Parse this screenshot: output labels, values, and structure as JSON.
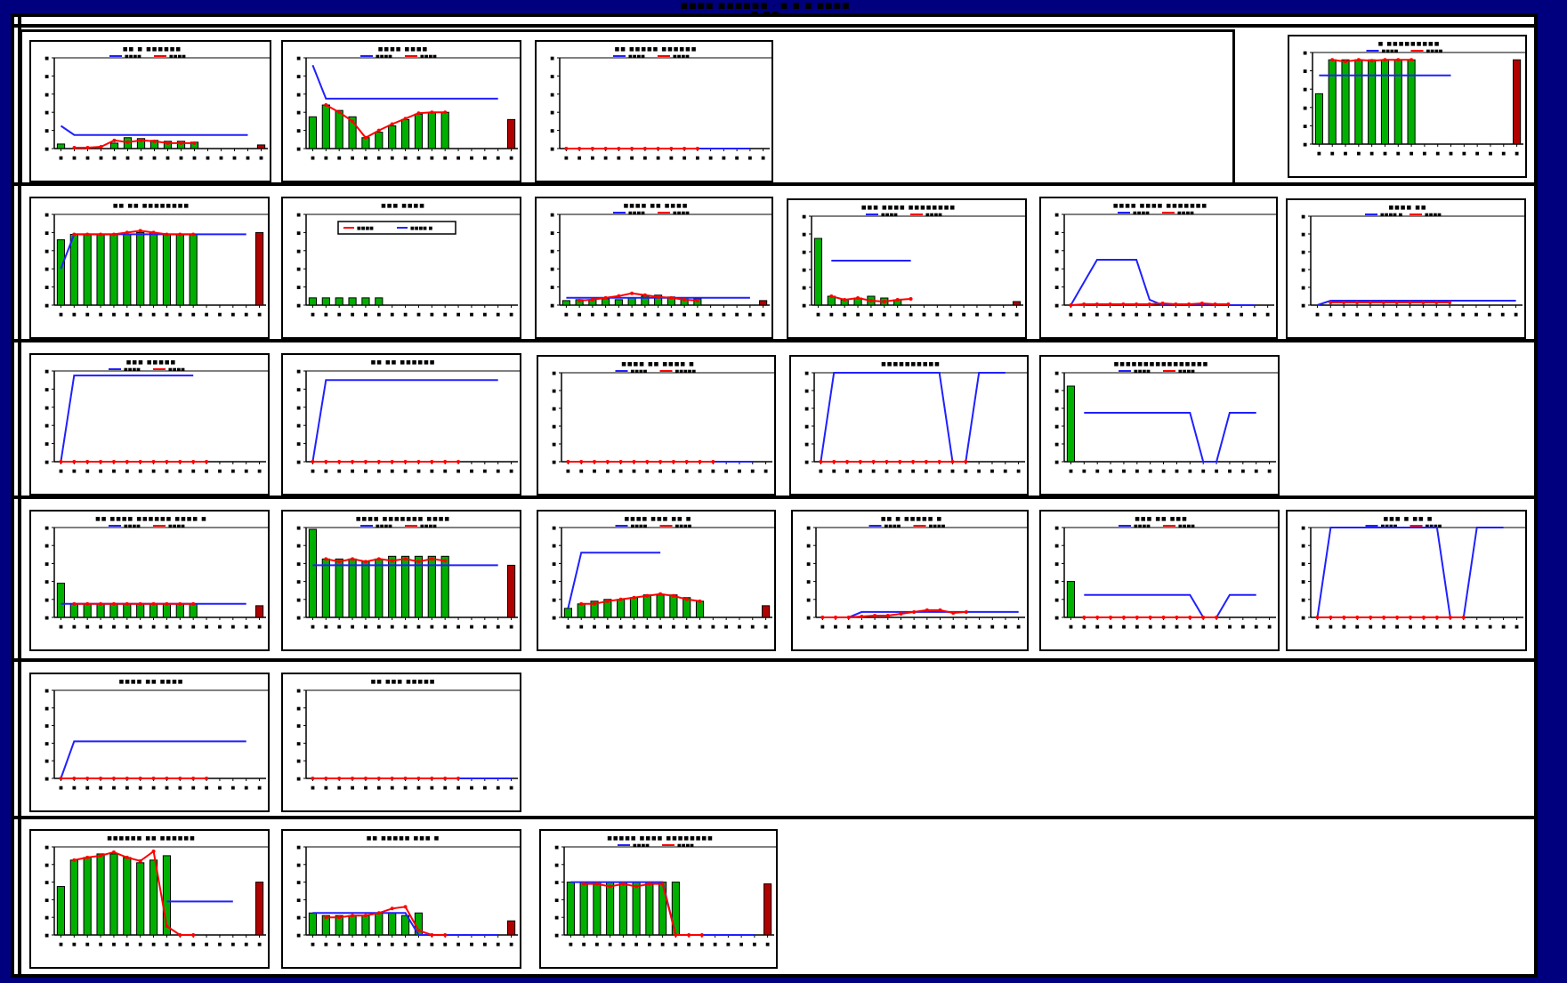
{
  "page": {
    "title": "■■■■ ■■■■■■ - ■ ■ ■ ■■■■",
    "subtitle": "■ ■■",
    "colors": {
      "background": "#00007e",
      "sheet": "#ffffff",
      "target_line": "#2020ff",
      "actual_line": "#ff0000",
      "bar": "#00b000",
      "ytd_bar": "#b00000"
    }
  },
  "chart_data": [
    {
      "type": "bar",
      "title": "■■ ■ ■■■■■■",
      "legend": [
        "■■■■",
        "■■■■"
      ],
      "values": [
        0.05,
        0,
        0,
        0,
        0.06,
        0.12,
        0.11,
        0.09,
        0.08,
        0.08,
        0.07,
        0,
        0,
        0,
        0,
        0.04
      ],
      "target": [
        0.25,
        0.15,
        0.15,
        0.15,
        0.15,
        0.15,
        0.15,
        0.15,
        0.15,
        0.15,
        0.15,
        0.15,
        0.15,
        0.15,
        0.15,
        null
      ],
      "actual": [
        null,
        0.01,
        0.01,
        0.02,
        0.09,
        0.07,
        0.09,
        0.08,
        0.06,
        0.06,
        0.06,
        null,
        null,
        null,
        null,
        null
      ],
      "ytd_index": 15,
      "ylim": [
        0,
        1
      ]
    },
    {
      "type": "bar",
      "title": "■■■■ ■■■■",
      "legend": [
        "■■■■",
        "■■■■"
      ],
      "values": [
        0.35,
        0.48,
        0.42,
        0.35,
        0.12,
        0.18,
        0.25,
        0.32,
        0.38,
        0.4,
        0.4,
        0,
        0,
        0,
        0,
        0.32
      ],
      "target": [
        0.92,
        0.55,
        0.55,
        0.55,
        0.55,
        0.55,
        0.55,
        0.55,
        0.55,
        0.55,
        0.55,
        0.55,
        0.55,
        0.55,
        0.55,
        null
      ],
      "actual": [
        null,
        0.48,
        0.4,
        0.3,
        0.12,
        0.2,
        0.27,
        0.33,
        0.39,
        0.4,
        0.4,
        null,
        null,
        null,
        null,
        null
      ],
      "ytd_index": 15,
      "ylim": [
        0,
        1
      ]
    },
    {
      "type": "bar",
      "title": "■■ ■■■■■ ■■■■■■",
      "legend": [
        "■■■■",
        "■■■■"
      ],
      "values": [],
      "target": [
        0,
        0,
        0,
        0,
        0,
        0,
        0,
        0,
        0,
        0,
        0,
        0,
        0,
        0,
        0,
        null
      ],
      "actual": [
        0,
        0,
        0,
        0,
        0,
        0,
        0,
        0,
        0,
        0,
        0,
        null,
        null,
        null,
        null,
        null
      ],
      "ylim": [
        0,
        1
      ]
    },
    {
      "type": "bar",
      "title": "■ ■■■■■■■■■",
      "legend": [
        "■■■■",
        "■■■■"
      ],
      "values": [
        0.55,
        0.92,
        0.92,
        0.92,
        0.92,
        0.92,
        0.92,
        0.92,
        0,
        0,
        0,
        0,
        0,
        0,
        0,
        0.92
      ],
      "target": [
        0.75,
        0.75,
        0.75,
        0.75,
        0.75,
        0.75,
        0.75,
        0.75,
        0.75,
        0.75,
        0.75,
        null,
        null,
        null,
        null,
        null
      ],
      "actual": [
        null,
        0.92,
        0.9,
        0.92,
        0.91,
        0.92,
        0.92,
        0.92,
        null,
        null,
        null,
        null,
        null,
        null,
        null,
        null
      ],
      "ytd_index": 15,
      "ylim": [
        0,
        1
      ]
    },
    {
      "type": "bar",
      "title": "■■ ■■ ■■■■■■■■",
      "legend": [],
      "values": [
        0.72,
        0.78,
        0.78,
        0.78,
        0.78,
        0.78,
        0.8,
        0.8,
        0.78,
        0.78,
        0.78,
        0,
        0,
        0,
        0,
        0.8
      ],
      "target": [
        0.4,
        0.78,
        0.78,
        0.78,
        0.78,
        0.78,
        0.78,
        0.78,
        0.78,
        0.78,
        0.78,
        0.78,
        0.78,
        0.78,
        0.78,
        null
      ],
      "actual": [
        null,
        0.78,
        0.78,
        0.78,
        0.78,
        0.8,
        0.82,
        0.8,
        0.78,
        0.78,
        0.78,
        null,
        null,
        null,
        null,
        null
      ],
      "ytd_index": 15,
      "ylim": [
        0,
        1
      ]
    },
    {
      "type": "bar",
      "title": "■■■ ■■■■",
      "legend_box": [
        "■■■■",
        "■■■■ ■"
      ],
      "values": [
        0.08,
        0.08,
        0.08,
        0.08,
        0.08,
        0.08,
        0,
        0,
        0,
        0,
        0,
        0,
        0,
        0,
        0,
        0
      ],
      "target": [],
      "actual": [],
      "ylim": [
        0,
        1
      ]
    },
    {
      "type": "bar",
      "title": "■■■■ ■■ ■■■■",
      "legend": [
        "■■■■",
        "■■■■"
      ],
      "values": [
        0.05,
        0.06,
        0.06,
        0.07,
        0.06,
        0.08,
        0.1,
        0.11,
        0.09,
        0.08,
        0.07,
        0,
        0,
        0,
        0,
        0.05
      ],
      "target": [
        0.08,
        0.08,
        0.08,
        0.08,
        0.08,
        0.08,
        0.08,
        0.08,
        0.08,
        0.08,
        0.08,
        0.08,
        0.08,
        0.08,
        0.08,
        null
      ],
      "actual": [
        null,
        0.05,
        0.06,
        0.08,
        0.1,
        0.13,
        0.11,
        0.09,
        0.08,
        0.06,
        0.05,
        null,
        null,
        null,
        null,
        null
      ],
      "ytd_index": 15,
      "ylim": [
        0,
        1
      ]
    },
    {
      "type": "bar",
      "title": "■■■ ■■■■ ■■■■■■■■",
      "legend": [
        "■■■■",
        "■■■■"
      ],
      "values": [
        0.75,
        0.1,
        0.06,
        0.08,
        0.1,
        0.08,
        0.06,
        0,
        0,
        0,
        0,
        0,
        0,
        0,
        0,
        0.04
      ],
      "target": [
        null,
        0.5,
        0.5,
        0.5,
        0.5,
        0.5,
        0.5,
        0.5,
        null,
        null,
        null,
        null,
        null,
        null,
        null,
        null
      ],
      "actual": [
        null,
        0.1,
        0.06,
        0.08,
        0.05,
        0.04,
        0.06,
        0.07,
        null,
        null,
        null,
        null,
        null,
        null,
        null,
        null
      ],
      "ytd_index": 15,
      "ylim": [
        0,
        1
      ]
    },
    {
      "type": "line",
      "title": "■■■■ ■■■■ ■■■■■■■",
      "legend": [
        "■■■■",
        "■■■■"
      ],
      "values": [],
      "target": [
        0,
        0.25,
        0.5,
        0.5,
        0.5,
        0.5,
        0.06,
        0,
        0,
        0,
        0,
        0,
        0,
        0,
        0,
        null
      ],
      "actual": [
        0,
        0.01,
        0.01,
        0.01,
        0.01,
        0.01,
        0.01,
        0.02,
        0.01,
        0.01,
        0.02,
        0.01,
        0.01,
        null,
        null,
        null
      ],
      "ylim": [
        0,
        1
      ]
    },
    {
      "type": "line",
      "title": "■■■■ ■■",
      "legend": [
        "■■■■ ■",
        "■■■■"
      ],
      "values": [],
      "target": [
        0,
        0.05,
        0.05,
        0.05,
        0.05,
        0.05,
        0.05,
        0.05,
        0.05,
        0.05,
        0.05,
        0.05,
        0.05,
        0.05,
        0.05,
        0.05
      ],
      "actual": [
        null,
        0.03,
        0.03,
        0.03,
        0.03,
        0.03,
        0.03,
        0.03,
        0.03,
        0.03,
        0.03,
        null,
        null,
        null,
        null,
        null
      ],
      "ylim": [
        0,
        1
      ]
    },
    {
      "type": "line",
      "title": "■■■ ■■■■■",
      "legend": [
        "■■■■",
        "■■■■"
      ],
      "values": [],
      "target": [
        0,
        0.95,
        0.95,
        0.95,
        0.95,
        0.95,
        0.95,
        0.95,
        0.95,
        0.95,
        0.95,
        null,
        null,
        null,
        null,
        null
      ],
      "actual": [
        0,
        0,
        0,
        0,
        0,
        0,
        0,
        0,
        0,
        0,
        0,
        0,
        null,
        null,
        null,
        null
      ],
      "ylim": [
        0,
        1
      ]
    },
    {
      "type": "line",
      "title": "■■ ■■ ■■■■■■",
      "legend": [],
      "values": [],
      "target": [
        0,
        0.9,
        0.9,
        0.9,
        0.9,
        0.9,
        0.9,
        0.9,
        0.9,
        0.9,
        0.9,
        0.9,
        0.9,
        0.9,
        0.9,
        null
      ],
      "actual": [
        0,
        0,
        0,
        0,
        0,
        0,
        0,
        0,
        0,
        0,
        0,
        0,
        null,
        null,
        null,
        null
      ],
      "ylim": [
        0,
        1
      ]
    },
    {
      "type": "line",
      "title": "■■■■ ■■ ■■■■ ■",
      "legend": [
        "■■■■",
        "■■■■■"
      ],
      "values": [],
      "target": [
        0,
        0,
        0,
        0,
        0,
        0,
        0,
        0,
        0,
        0,
        0,
        0,
        0,
        0,
        0,
        null
      ],
      "actual": [
        0,
        0,
        0,
        0,
        0,
        0,
        0,
        0,
        0,
        0,
        0,
        0,
        null,
        null,
        null,
        null
      ],
      "ylim": [
        0,
        1
      ]
    },
    {
      "type": "line",
      "title": "■■■■■■■■■■",
      "legend": [],
      "values": [],
      "target": [
        0,
        1,
        1,
        1,
        1,
        1,
        1,
        1,
        1,
        1,
        0,
        0,
        1,
        1,
        1,
        null
      ],
      "actual": [
        0,
        0,
        0,
        0,
        0,
        0,
        0,
        0,
        0,
        0,
        0,
        0,
        null,
        null,
        null,
        null
      ],
      "ylim": [
        0,
        1
      ]
    },
    {
      "type": "bar",
      "title": "■■■■■■■■■■■■■■■■",
      "legend": [
        "■■■■",
        "■■■■"
      ],
      "values": [
        0.85,
        0,
        0,
        0,
        0,
        0,
        0,
        0,
        0,
        0,
        0,
        0,
        0,
        0,
        0,
        0
      ],
      "target": [
        null,
        0.55,
        0.55,
        0.55,
        0.55,
        0.55,
        0.55,
        0.55,
        0.55,
        0.55,
        0,
        0,
        0.55,
        0.55,
        0.55,
        null
      ],
      "actual": [],
      "ylim": [
        0,
        1
      ]
    },
    {
      "type": "bar",
      "title": "■■ ■■■■ ■■■■■■ ■■■■ ■",
      "legend": [
        "■■■■",
        "■■■■"
      ],
      "values": [
        0.38,
        0.15,
        0.15,
        0.15,
        0.15,
        0.15,
        0.15,
        0.15,
        0.15,
        0.15,
        0.15,
        0,
        0,
        0,
        0,
        0.13
      ],
      "target": [
        0.15,
        0.15,
        0.15,
        0.15,
        0.15,
        0.15,
        0.15,
        0.15,
        0.15,
        0.15,
        0.15,
        0.15,
        0.15,
        0.15,
        0.15,
        null
      ],
      "actual": [
        null,
        0.15,
        0.15,
        0.15,
        0.15,
        0.15,
        0.15,
        0.15,
        0.15,
        0.15,
        0.15,
        null,
        null,
        null,
        null,
        null
      ],
      "ytd_index": 15,
      "ylim": [
        0,
        1
      ]
    },
    {
      "type": "bar",
      "title": "■■■■ ■■■■■■■ ■■■■",
      "legend": [
        "■■■■",
        "■■■■"
      ],
      "values": [
        0.98,
        0.65,
        0.65,
        0.65,
        0.62,
        0.65,
        0.68,
        0.68,
        0.68,
        0.68,
        0.68,
        0,
        0,
        0,
        0,
        0.58
      ],
      "target": [
        0.58,
        0.58,
        0.58,
        0.58,
        0.58,
        0.58,
        0.58,
        0.58,
        0.58,
        0.58,
        0.58,
        0.58,
        0.58,
        0.58,
        0.58,
        null
      ],
      "actual": [
        null,
        0.65,
        0.62,
        0.65,
        0.62,
        0.65,
        0.63,
        0.65,
        0.62,
        0.65,
        0.63,
        null,
        null,
        null,
        null,
        null
      ],
      "ytd_index": 15,
      "ylim": [
        0,
        1
      ]
    },
    {
      "type": "bar",
      "title": "■■■■ ■■■ ■■ ■",
      "legend": [
        "■■■■",
        "■■■■"
      ],
      "values": [
        0.1,
        0.15,
        0.18,
        0.2,
        0.2,
        0.22,
        0.25,
        0.25,
        0.25,
        0.22,
        0.18,
        0,
        0,
        0,
        0,
        0.13
      ],
      "target": [
        0.1,
        0.72,
        0.72,
        0.72,
        0.72,
        0.72,
        0.72,
        0.72,
        null,
        null,
        null,
        null,
        null,
        null,
        null,
        null
      ],
      "actual": [
        null,
        0.15,
        0.15,
        0.18,
        0.2,
        0.22,
        0.24,
        0.26,
        0.24,
        0.2,
        0.18,
        null,
        null,
        null,
        null,
        null
      ],
      "ytd_index": 15,
      "ylim": [
        0,
        1
      ]
    },
    {
      "type": "line",
      "title": "■■ ■ ■■■■■ ■",
      "legend": [
        "■■■■",
        "■■■■"
      ],
      "values": [],
      "target": [
        0,
        0,
        0,
        0.06,
        0.06,
        0.06,
        0.06,
        0.06,
        0.06,
        0.06,
        0.06,
        0.06,
        0.06,
        0.06,
        0.06,
        0.06
      ],
      "actual": [
        0,
        0,
        0,
        0.01,
        0.02,
        0.02,
        0.04,
        0.06,
        0.08,
        0.08,
        0.05,
        0.06,
        null,
        null,
        null,
        null
      ],
      "ylim": [
        0,
        1
      ]
    },
    {
      "type": "bar",
      "title": "■■■ ■■ ■■■",
      "legend": [
        "■■■■",
        "■■■■"
      ],
      "values": [
        0.4,
        0,
        0,
        0,
        0,
        0,
        0,
        0,
        0,
        0,
        0,
        0,
        0,
        0,
        0,
        0
      ],
      "target": [
        null,
        0.25,
        0.25,
        0.25,
        0.25,
        0.25,
        0.25,
        0.25,
        0.25,
        0.25,
        0,
        0,
        0.25,
        0.25,
        0.25,
        null
      ],
      "actual": [
        null,
        0,
        0,
        0,
        0,
        0,
        0,
        0,
        0,
        0,
        0,
        0,
        null,
        null,
        null,
        null
      ],
      "ylim": [
        0,
        1
      ]
    },
    {
      "type": "line",
      "title": "■■■ ■ ■■ ■",
      "legend": [
        "■■■■",
        "■■■■"
      ],
      "values": [],
      "target": [
        0,
        1,
        1,
        1,
        1,
        1,
        1,
        1,
        1,
        1,
        0,
        0,
        1,
        1,
        1,
        null
      ],
      "actual": [
        0,
        0,
        0,
        0,
        0,
        0,
        0,
        0,
        0,
        0,
        0,
        0,
        null,
        null,
        null,
        null
      ],
      "ylim": [
        0,
        1
      ]
    },
    {
      "type": "line",
      "title": "■■■■ ■■ ■■■■",
      "legend": [],
      "values": [],
      "target": [
        0,
        0.42,
        0.42,
        0.42,
        0.42,
        0.42,
        0.42,
        0.42,
        0.42,
        0.42,
        0.42,
        0.42,
        0.42,
        0.42,
        0.42,
        null
      ],
      "actual": [
        0,
        0,
        0,
        0,
        0,
        0,
        0,
        0,
        0,
        0,
        0,
        0,
        null,
        null,
        null,
        null
      ],
      "ylim": [
        0,
        1
      ]
    },
    {
      "type": "line",
      "title": "■■ ■■■ ■■■■■",
      "legend": [],
      "values": [],
      "target": [
        0,
        0,
        0,
        0,
        0,
        0,
        0,
        0,
        0,
        0,
        0,
        0,
        0,
        0,
        0,
        0
      ],
      "actual": [
        0,
        0,
        0,
        0,
        0,
        0,
        0,
        0,
        0,
        0,
        0,
        0,
        null,
        null,
        null,
        null
      ],
      "ylim": [
        0,
        1
      ]
    },
    {
      "type": "bar",
      "title": "■■■■■■ ■■ ■■■■■■",
      "legend": [],
      "values": [
        0.55,
        0.85,
        0.88,
        0.92,
        0.92,
        0.88,
        0.82,
        0.85,
        0.9,
        0,
        0,
        0,
        0,
        0,
        0,
        0.6
      ],
      "target": [
        null,
        null,
        null,
        null,
        null,
        null,
        null,
        null,
        0.38,
        0.38,
        0.38,
        0.38,
        0.38,
        0.38,
        null,
        null
      ],
      "actual": [
        null,
        0.85,
        0.88,
        0.9,
        0.94,
        0.88,
        0.84,
        0.95,
        0.1,
        0,
        0,
        null,
        null,
        null,
        null,
        null
      ],
      "ytd_index": 15,
      "ylim": [
        0,
        1
      ]
    },
    {
      "type": "bar",
      "title": "■■ ■■■■■ ■■■ ■",
      "legend": [],
      "values": [
        0.25,
        0.22,
        0.22,
        0.22,
        0.22,
        0.25,
        0.25,
        0.22,
        0.25,
        0,
        0,
        0,
        0,
        0,
        0,
        0.16
      ],
      "target": [
        0.25,
        0.25,
        0.25,
        0.25,
        0.25,
        0.25,
        0.25,
        0.25,
        0,
        0,
        0,
        0,
        0,
        0,
        0,
        null
      ],
      "actual": [
        null,
        0.2,
        0.2,
        0.22,
        0.22,
        0.25,
        0.3,
        0.32,
        0.05,
        0,
        0,
        null,
        null,
        null,
        null,
        null
      ],
      "ytd_index": 15,
      "ylim": [
        0,
        1
      ]
    },
    {
      "type": "bar",
      "title": "■■■■■ ■■■■ ■■■■■■■■",
      "legend": [
        "■■■■",
        "■■■■"
      ],
      "values": [
        0.6,
        0.6,
        0.6,
        0.6,
        0.6,
        0.6,
        0.6,
        0.6,
        0.6,
        0,
        0,
        0,
        0,
        0,
        0,
        0.58
      ],
      "target": [
        0.6,
        0.6,
        0.6,
        0.6,
        0.6,
        0.6,
        0.6,
        0.6,
        0,
        0,
        0,
        0,
        0,
        0,
        0,
        null
      ],
      "actual": [
        null,
        0.58,
        0.58,
        0.55,
        0.58,
        0.55,
        0.58,
        0.58,
        0,
        0,
        0,
        null,
        null,
        null,
        null,
        null
      ],
      "ytd_index": 15,
      "ylim": [
        0,
        1
      ]
    }
  ]
}
